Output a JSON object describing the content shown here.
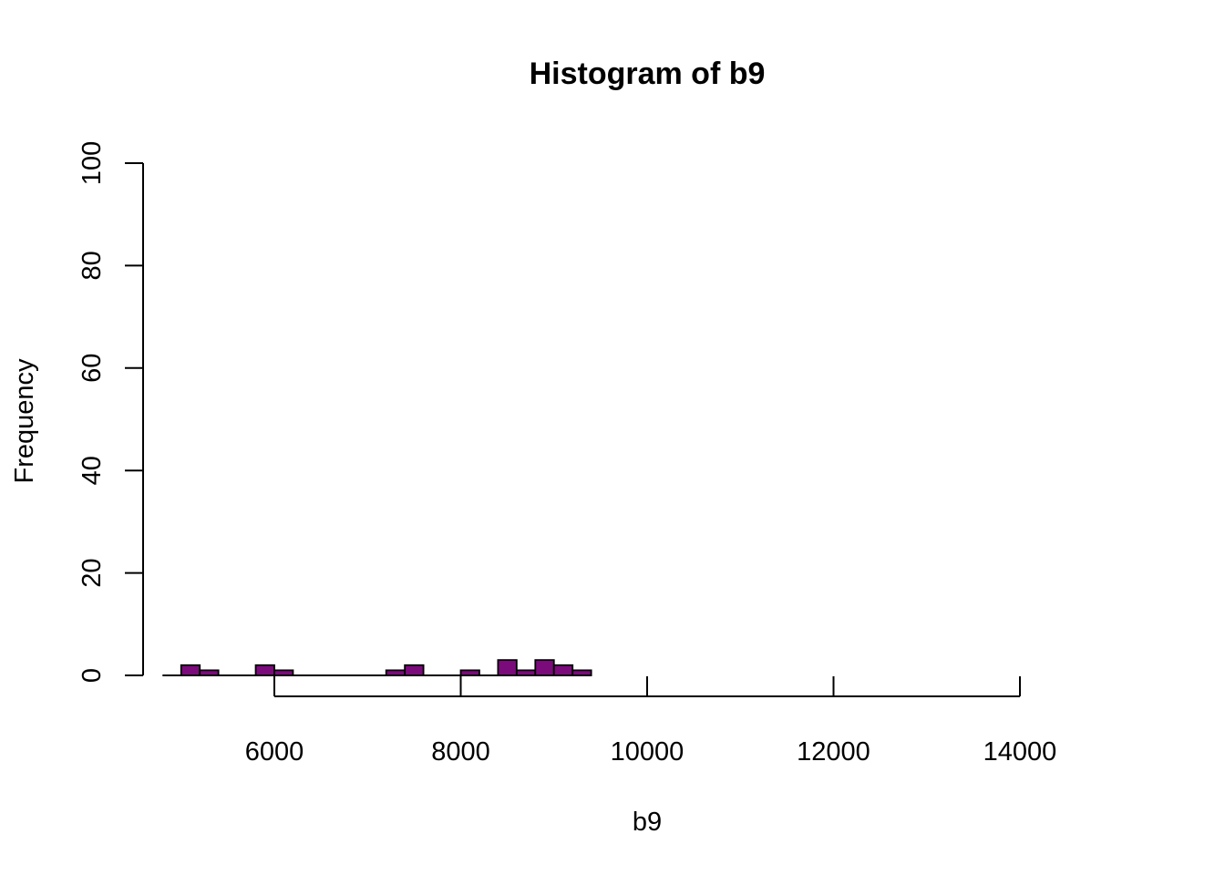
{
  "chart_data": {
    "type": "bar",
    "title": "Histogram of b9",
    "xlabel": "b9",
    "ylabel": "Frequency",
    "xlim": [
      4600,
      14000
    ],
    "ylim": [
      0,
      100
    ],
    "x_ticks": [
      6000,
      8000,
      10000,
      12000,
      14000
    ],
    "y_ticks": [
      0,
      20,
      40,
      60,
      80,
      100
    ],
    "bin_width": 200,
    "bars_fill": "#7b0b7b",
    "bars_stroke": "#000000",
    "bins": [
      {
        "start": 4800,
        "count": 0
      },
      {
        "start": 5000,
        "count": 2
      },
      {
        "start": 5200,
        "count": 1
      },
      {
        "start": 5400,
        "count": 0
      },
      {
        "start": 5600,
        "count": 0
      },
      {
        "start": 5800,
        "count": 2
      },
      {
        "start": 6000,
        "count": 1
      },
      {
        "start": 6200,
        "count": 0
      },
      {
        "start": 6400,
        "count": 0
      },
      {
        "start": 6600,
        "count": 0
      },
      {
        "start": 6800,
        "count": 0
      },
      {
        "start": 7000,
        "count": 0
      },
      {
        "start": 7200,
        "count": 1
      },
      {
        "start": 7400,
        "count": 2
      },
      {
        "start": 7600,
        "count": 0
      },
      {
        "start": 7800,
        "count": 0
      },
      {
        "start": 8000,
        "count": 1
      },
      {
        "start": 8200,
        "count": 0
      },
      {
        "start": 8400,
        "count": 3
      },
      {
        "start": 8600,
        "count": 1
      },
      {
        "start": 8800,
        "count": 3
      },
      {
        "start": 9000,
        "count": 2
      },
      {
        "start": 9200,
        "count": 1
      }
    ]
  }
}
